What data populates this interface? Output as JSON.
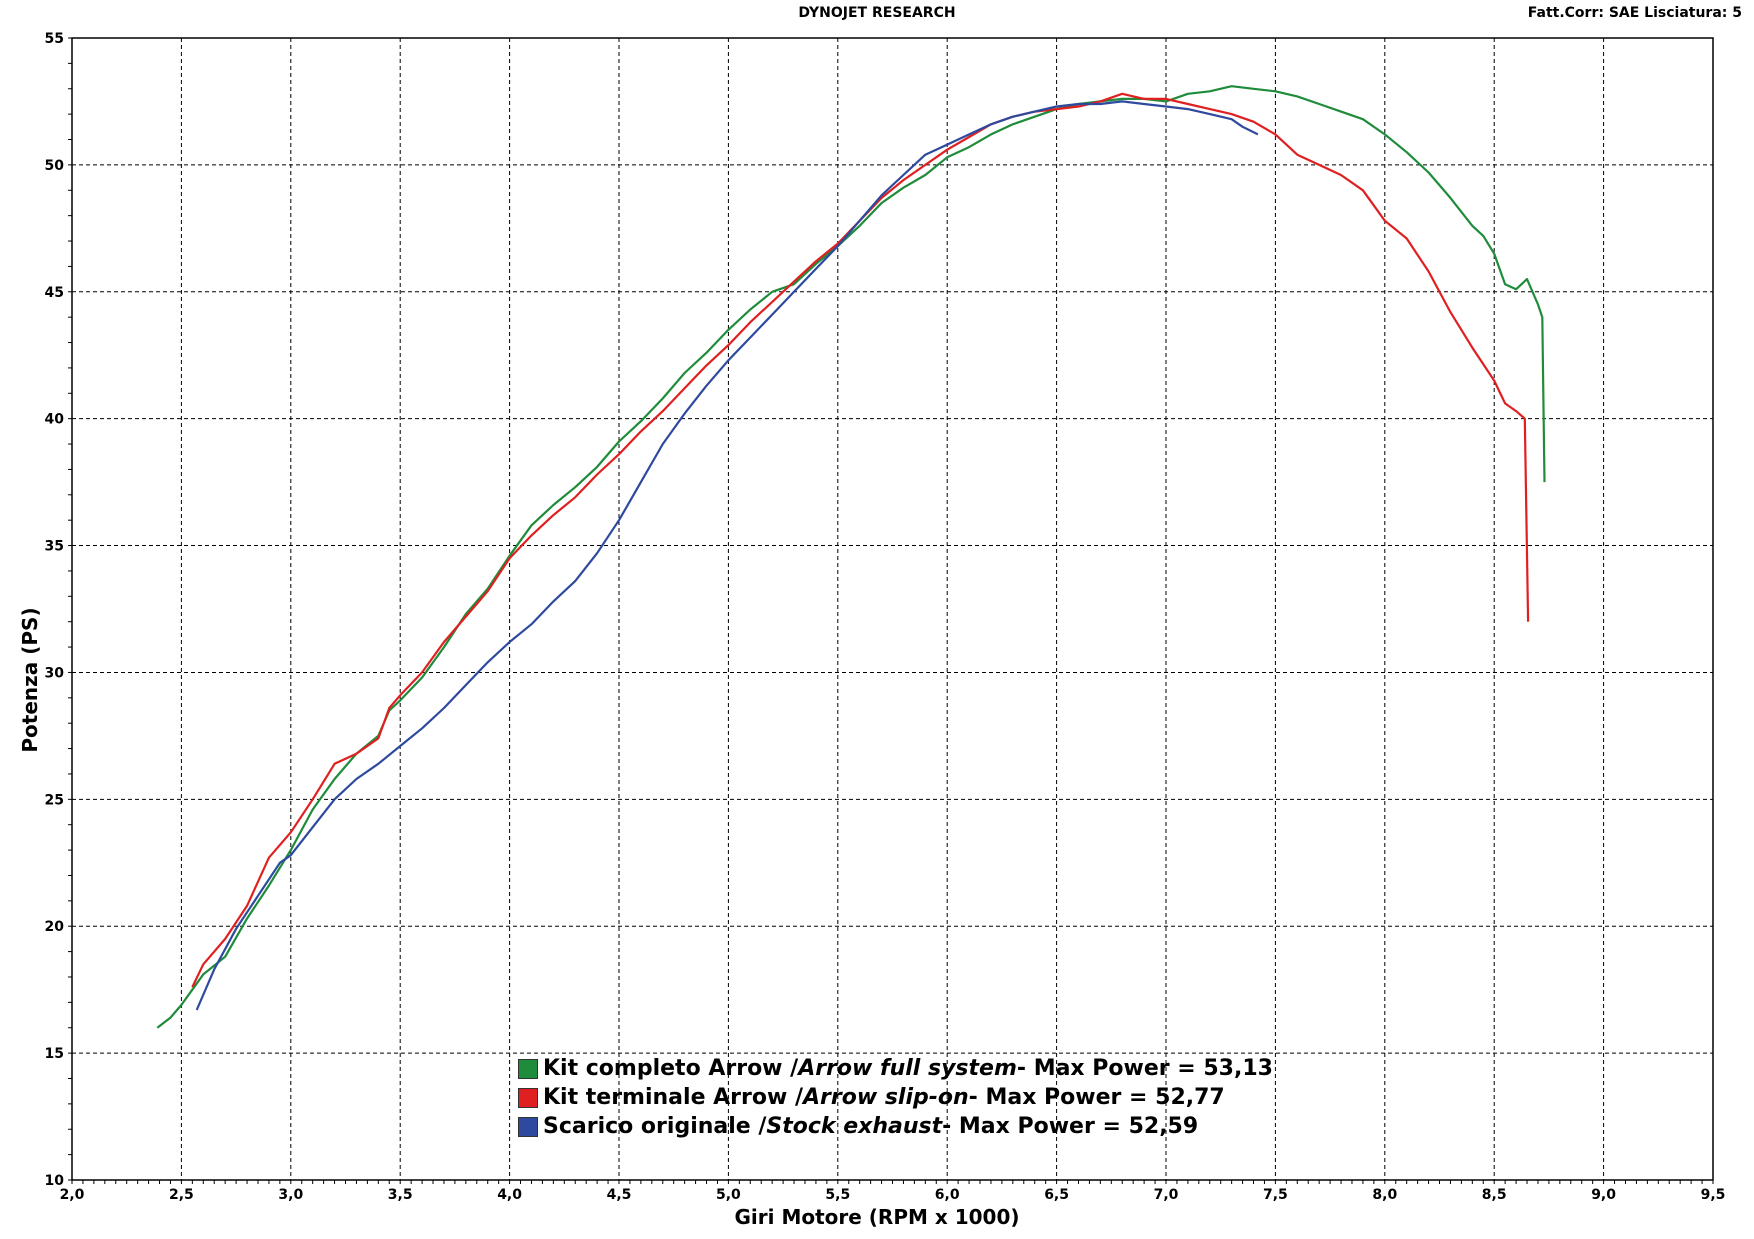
{
  "header": {
    "title": "DYNOJET RESEARCH",
    "right_text": "Fatt.Corr: SAE  Lisciatura: 5"
  },
  "colors": {
    "series_green": "#1e8c3a",
    "series_red": "#e02020",
    "series_blue": "#2e4a9e",
    "grid": "#000000",
    "background": "#ffffff"
  },
  "legend": {
    "items": [
      {
        "prefix": "Kit completo Arrow / ",
        "italic": "Arrow full system",
        "suffix": " - Max Power = 53,13"
      },
      {
        "prefix": "Kit terminale Arrow / ",
        "italic": "Arrow slip-on",
        "suffix": " - Max Power = 52,77"
      },
      {
        "prefix": "Scarico originale / ",
        "italic": "Stock exhaust",
        "suffix": " - Max Power = 52,59"
      }
    ]
  },
  "chart_data": {
    "type": "line",
    "title": "DYNOJET RESEARCH",
    "xlabel": "Giri Motore (RPM x 1000)",
    "ylabel": "Potenza (PS)",
    "xlim": [
      2.0,
      9.5
    ],
    "ylim": [
      10,
      55
    ],
    "grid": true,
    "legend_position": "bottom-center",
    "x_ticks": [
      "2,0",
      "2,5",
      "3,0",
      "3,5",
      "4,0",
      "4,5",
      "5,0",
      "5,5",
      "6,0",
      "6,5",
      "7,0",
      "7,5",
      "8,0",
      "8,5",
      "9,0",
      "9,5"
    ],
    "y_ticks": [
      "10",
      "15",
      "20",
      "25",
      "30",
      "35",
      "40",
      "45",
      "50",
      "55"
    ],
    "series": [
      {
        "name": "Kit completo Arrow / Arrow full system - Max Power = 53,13",
        "color": "#1e8c3a",
        "points": [
          [
            2.39,
            16.0
          ],
          [
            2.45,
            16.4
          ],
          [
            2.5,
            16.9
          ],
          [
            2.55,
            17.5
          ],
          [
            2.6,
            18.1
          ],
          [
            2.7,
            18.8
          ],
          [
            2.8,
            20.3
          ],
          [
            2.9,
            21.6
          ],
          [
            3.0,
            23.0
          ],
          [
            3.1,
            24.6
          ],
          [
            3.2,
            25.8
          ],
          [
            3.3,
            26.8
          ],
          [
            3.4,
            27.5
          ],
          [
            3.45,
            28.5
          ],
          [
            3.5,
            28.9
          ],
          [
            3.6,
            29.8
          ],
          [
            3.7,
            31.0
          ],
          [
            3.8,
            32.3
          ],
          [
            3.9,
            33.3
          ],
          [
            4.0,
            34.6
          ],
          [
            4.1,
            35.8
          ],
          [
            4.2,
            36.6
          ],
          [
            4.3,
            37.3
          ],
          [
            4.4,
            38.1
          ],
          [
            4.5,
            39.1
          ],
          [
            4.6,
            39.9
          ],
          [
            4.7,
            40.8
          ],
          [
            4.8,
            41.8
          ],
          [
            4.9,
            42.6
          ],
          [
            5.0,
            43.5
          ],
          [
            5.1,
            44.3
          ],
          [
            5.2,
            45.0
          ],
          [
            5.3,
            45.3
          ],
          [
            5.4,
            46.1
          ],
          [
            5.5,
            46.8
          ],
          [
            5.6,
            47.6
          ],
          [
            5.7,
            48.5
          ],
          [
            5.8,
            49.1
          ],
          [
            5.9,
            49.6
          ],
          [
            6.0,
            50.3
          ],
          [
            6.1,
            50.7
          ],
          [
            6.2,
            51.2
          ],
          [
            6.3,
            51.6
          ],
          [
            6.4,
            51.9
          ],
          [
            6.5,
            52.2
          ],
          [
            6.6,
            52.4
          ],
          [
            6.7,
            52.5
          ],
          [
            6.8,
            52.6
          ],
          [
            6.9,
            52.6
          ],
          [
            7.0,
            52.5
          ],
          [
            7.1,
            52.8
          ],
          [
            7.2,
            52.9
          ],
          [
            7.3,
            53.1
          ],
          [
            7.4,
            53.0
          ],
          [
            7.5,
            52.9
          ],
          [
            7.6,
            52.7
          ],
          [
            7.7,
            52.4
          ],
          [
            7.8,
            52.1
          ],
          [
            7.9,
            51.8
          ],
          [
            8.0,
            51.2
          ],
          [
            8.1,
            50.5
          ],
          [
            8.2,
            49.7
          ],
          [
            8.3,
            48.7
          ],
          [
            8.4,
            47.6
          ],
          [
            8.45,
            47.2
          ],
          [
            8.5,
            46.5
          ],
          [
            8.55,
            45.3
          ],
          [
            8.6,
            45.1
          ],
          [
            8.65,
            45.5
          ],
          [
            8.7,
            44.5
          ],
          [
            8.72,
            44.0
          ],
          [
            8.73,
            37.5
          ]
        ]
      },
      {
        "name": "Kit terminale Arrow / Arrow slip-on - Max Power = 52,77",
        "color": "#e02020",
        "points": [
          [
            2.55,
            17.6
          ],
          [
            2.6,
            18.5
          ],
          [
            2.7,
            19.5
          ],
          [
            2.8,
            20.8
          ],
          [
            2.9,
            22.7
          ],
          [
            3.0,
            23.7
          ],
          [
            3.1,
            25.0
          ],
          [
            3.2,
            26.4
          ],
          [
            3.3,
            26.8
          ],
          [
            3.4,
            27.4
          ],
          [
            3.45,
            28.6
          ],
          [
            3.5,
            29.1
          ],
          [
            3.6,
            30.0
          ],
          [
            3.7,
            31.2
          ],
          [
            3.8,
            32.2
          ],
          [
            3.9,
            33.2
          ],
          [
            4.0,
            34.5
          ],
          [
            4.1,
            35.4
          ],
          [
            4.2,
            36.2
          ],
          [
            4.3,
            36.9
          ],
          [
            4.4,
            37.8
          ],
          [
            4.5,
            38.6
          ],
          [
            4.6,
            39.5
          ],
          [
            4.7,
            40.3
          ],
          [
            4.8,
            41.2
          ],
          [
            4.9,
            42.1
          ],
          [
            5.0,
            42.9
          ],
          [
            5.1,
            43.8
          ],
          [
            5.2,
            44.6
          ],
          [
            5.3,
            45.4
          ],
          [
            5.4,
            46.2
          ],
          [
            5.5,
            46.9
          ],
          [
            5.6,
            47.8
          ],
          [
            5.7,
            48.7
          ],
          [
            5.8,
            49.4
          ],
          [
            5.9,
            50.0
          ],
          [
            6.0,
            50.6
          ],
          [
            6.1,
            51.1
          ],
          [
            6.2,
            51.6
          ],
          [
            6.3,
            51.9
          ],
          [
            6.4,
            52.1
          ],
          [
            6.5,
            52.2
          ],
          [
            6.6,
            52.3
          ],
          [
            6.7,
            52.5
          ],
          [
            6.8,
            52.8
          ],
          [
            6.9,
            52.6
          ],
          [
            7.0,
            52.6
          ],
          [
            7.1,
            52.4
          ],
          [
            7.2,
            52.2
          ],
          [
            7.3,
            52.0
          ],
          [
            7.4,
            51.7
          ],
          [
            7.5,
            51.2
          ],
          [
            7.6,
            50.4
          ],
          [
            7.7,
            50.0
          ],
          [
            7.8,
            49.6
          ],
          [
            7.9,
            49.0
          ],
          [
            8.0,
            47.8
          ],
          [
            8.1,
            47.1
          ],
          [
            8.2,
            45.8
          ],
          [
            8.3,
            44.2
          ],
          [
            8.4,
            42.8
          ],
          [
            8.5,
            41.5
          ],
          [
            8.55,
            40.6
          ],
          [
            8.6,
            40.3
          ],
          [
            8.64,
            40.0
          ],
          [
            8.655,
            32.0
          ]
        ]
      },
      {
        "name": "Scarico originale / Stock exhaust - Max Power = 52,59",
        "color": "#2e4a9e",
        "points": [
          [
            2.57,
            16.7
          ],
          [
            2.65,
            18.3
          ],
          [
            2.75,
            19.9
          ],
          [
            2.85,
            21.2
          ],
          [
            2.95,
            22.5
          ],
          [
            3.0,
            22.8
          ],
          [
            3.1,
            23.9
          ],
          [
            3.2,
            25.0
          ],
          [
            3.3,
            25.8
          ],
          [
            3.4,
            26.4
          ],
          [
            3.5,
            27.1
          ],
          [
            3.6,
            27.8
          ],
          [
            3.7,
            28.6
          ],
          [
            3.8,
            29.5
          ],
          [
            3.9,
            30.4
          ],
          [
            4.0,
            31.2
          ],
          [
            4.1,
            31.9
          ],
          [
            4.2,
            32.8
          ],
          [
            4.3,
            33.6
          ],
          [
            4.4,
            34.7
          ],
          [
            4.5,
            36.0
          ],
          [
            4.6,
            37.5
          ],
          [
            4.7,
            39.0
          ],
          [
            4.8,
            40.2
          ],
          [
            4.9,
            41.3
          ],
          [
            5.0,
            42.3
          ],
          [
            5.1,
            43.2
          ],
          [
            5.2,
            44.1
          ],
          [
            5.3,
            45.0
          ],
          [
            5.4,
            45.9
          ],
          [
            5.5,
            46.8
          ],
          [
            5.6,
            47.8
          ],
          [
            5.7,
            48.8
          ],
          [
            5.8,
            49.6
          ],
          [
            5.9,
            50.4
          ],
          [
            6.0,
            50.8
          ],
          [
            6.1,
            51.2
          ],
          [
            6.2,
            51.6
          ],
          [
            6.3,
            51.9
          ],
          [
            6.4,
            52.1
          ],
          [
            6.5,
            52.3
          ],
          [
            6.6,
            52.4
          ],
          [
            6.7,
            52.4
          ],
          [
            6.8,
            52.5
          ],
          [
            6.9,
            52.4
          ],
          [
            7.0,
            52.3
          ],
          [
            7.1,
            52.2
          ],
          [
            7.2,
            52.0
          ],
          [
            7.3,
            51.8
          ],
          [
            7.35,
            51.5
          ],
          [
            7.42,
            51.2
          ]
        ]
      }
    ]
  }
}
